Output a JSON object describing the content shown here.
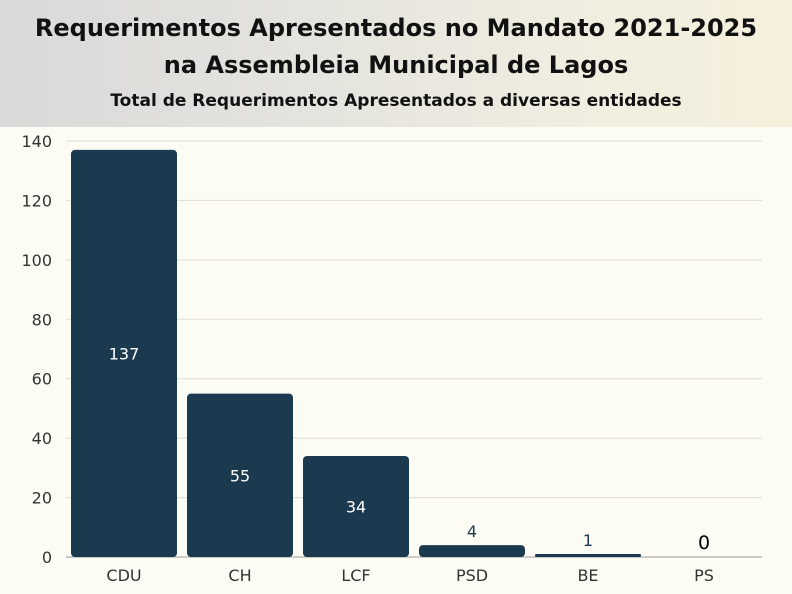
{
  "chart_data": {
    "type": "bar",
    "title_line1": "Requerimentos Apresentados no Mandato 2021-2025",
    "title_line2": "na Assembleia Municipal de Lagos",
    "subtitle": "Total de Requerimentos Apresentados a diversas entidades",
    "categories": [
      "CDU",
      "CH",
      "LCF",
      "PSD",
      "BE",
      "PS"
    ],
    "values": [
      137,
      55,
      34,
      4,
      1,
      0
    ],
    "data_labels": [
      "137",
      "55",
      "34",
      "4",
      "1",
      "0"
    ],
    "ylim": [
      0,
      140
    ],
    "yticks": [
      0,
      20,
      40,
      60,
      80,
      100,
      120,
      140
    ],
    "grid": true,
    "bar_color": "#1c3a4f",
    "background_color": "#fcfbf4"
  }
}
